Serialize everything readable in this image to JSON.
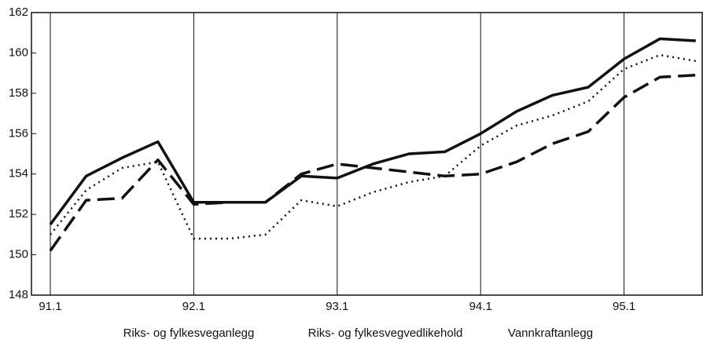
{
  "chart_data": {
    "type": "line",
    "categories": [
      "91.1",
      null,
      null,
      null,
      "92.1",
      null,
      null,
      null,
      "93.1",
      null,
      null,
      null,
      "94.1",
      null,
      null,
      null,
      "95.1",
      null,
      null
    ],
    "series": [
      {
        "name": "Riks- og fylkesveganlegg",
        "color": "#111111",
        "dash": "solid",
        "values": [
          151.5,
          153.9,
          154.8,
          155.6,
          152.6,
          152.6,
          152.6,
          153.9,
          153.8,
          154.5,
          155.0,
          155.1,
          156.0,
          157.1,
          157.9,
          158.3,
          159.7,
          160.7,
          160.6
        ]
      },
      {
        "name": "Riks- og fylkesvegvedlikehold",
        "color": "#111111",
        "dash": "dashed",
        "values": [
          150.2,
          152.7,
          152.8,
          154.7,
          152.5,
          152.6,
          152.6,
          154.0,
          154.5,
          154.3,
          154.1,
          153.9,
          154.0,
          154.6,
          155.5,
          156.1,
          157.8,
          158.8,
          158.9
        ]
      },
      {
        "name": "Vannkraftanlegg",
        "color": "#111111",
        "dash": "dotted",
        "values": [
          151.0,
          153.2,
          154.3,
          154.6,
          150.8,
          150.8,
          151.0,
          152.7,
          152.4,
          153.1,
          153.6,
          153.9,
          155.4,
          156.4,
          156.9,
          157.6,
          159.2,
          159.9,
          159.6
        ]
      }
    ],
    "ylim": [
      148,
      162
    ],
    "yticks": [
      148,
      150,
      152,
      154,
      156,
      158,
      160,
      162
    ],
    "grid": true
  }
}
